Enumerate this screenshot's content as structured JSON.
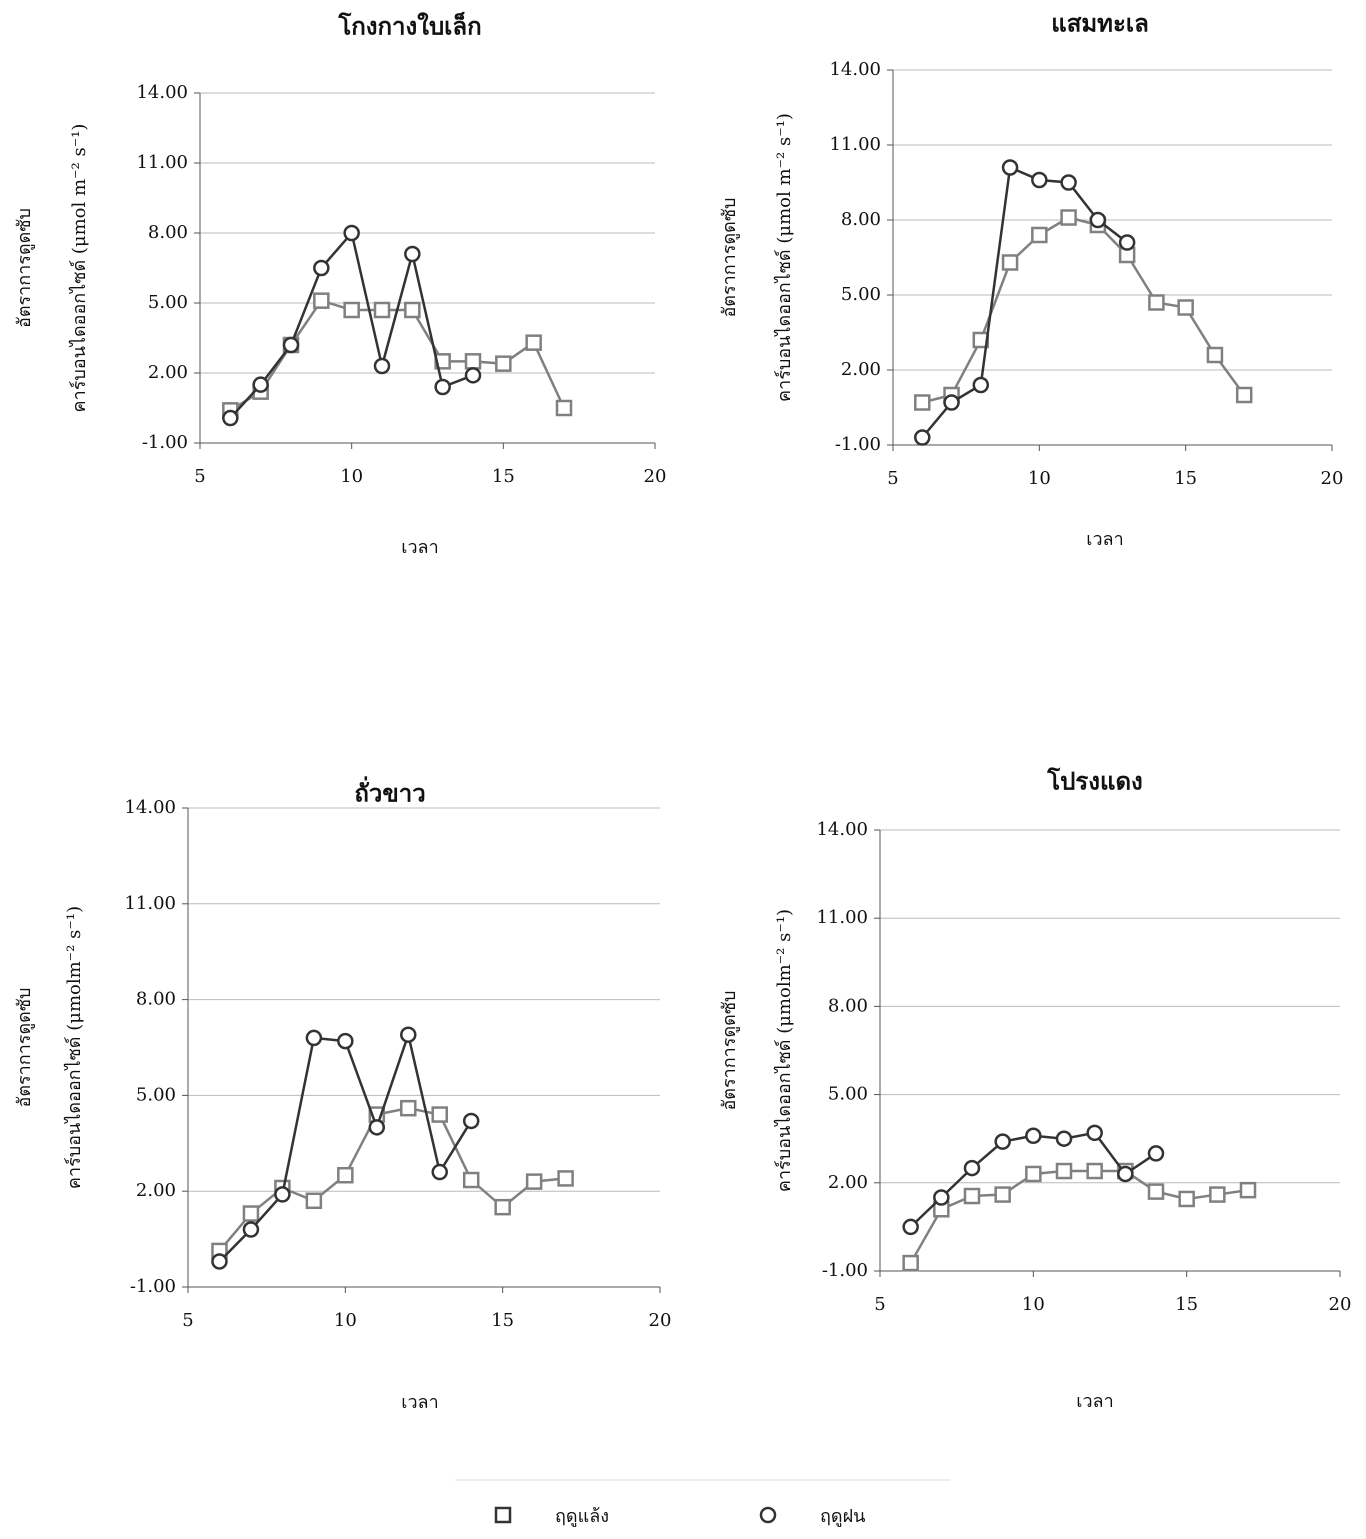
{
  "chart_data": [
    {
      "type": "line",
      "title": "โกงกางใบเล็ก",
      "xlabel": "เวลา",
      "ylabel": [
        "อัตราการดูดซับ",
        "คาร์บอนไดออกไซด์ (μmol m⁻² s⁻¹)"
      ],
      "xlim": [
        5,
        20
      ],
      "xticks": [
        5,
        10,
        15,
        20
      ],
      "ylim": [
        -1,
        14
      ],
      "yticks": [
        {
          "value": -1,
          "label": "-1.00"
        },
        {
          "value": 2,
          "label": "2.00"
        },
        {
          "value": 5,
          "label": "5.00"
        },
        {
          "value": 8,
          "label": "8.00"
        },
        {
          "value": 11,
          "label": "11.00"
        },
        {
          "value": 14,
          "label": "14.00"
        }
      ],
      "grid": true,
      "series": [
        {
          "name": "ฤดูแล้ง",
          "color": "#808080",
          "marker": "square",
          "x": [
            6,
            7,
            8,
            9,
            10,
            11,
            12,
            13,
            14,
            15,
            16,
            17
          ],
          "values": [
            0.4,
            1.2,
            3.2,
            5.1,
            4.7,
            4.7,
            4.7,
            2.5,
            2.5,
            2.4,
            3.3,
            0.5
          ]
        },
        {
          "name": "ฤดูฝน",
          "color": "#333333",
          "marker": "circle",
          "x": [
            6,
            7,
            8,
            9,
            10,
            11,
            12,
            13,
            14
          ],
          "values": [
            0.07,
            1.5,
            3.2,
            6.5,
            8.0,
            2.3,
            7.1,
            1.4,
            1.9
          ]
        }
      ]
    },
    {
      "type": "line",
      "title": "แสมทะเล",
      "xlabel": "เวลา",
      "ylabel": [
        "อัตราการดูดซับ",
        "คาร์บอนไดออกไซด์ (μmol m⁻² s⁻¹)"
      ],
      "xlim": [
        5,
        20
      ],
      "xticks": [
        5,
        10,
        15,
        20
      ],
      "ylim": [
        -1,
        14
      ],
      "yticks": [
        {
          "value": -1,
          "label": "-1.00"
        },
        {
          "value": 2,
          "label": "2.00"
        },
        {
          "value": 5,
          "label": "5.00"
        },
        {
          "value": 8,
          "label": "8.00"
        },
        {
          "value": 11,
          "label": "11.00"
        },
        {
          "value": 14,
          "label": "14.00"
        }
      ],
      "grid": true,
      "series": [
        {
          "name": "ฤดูแล้ง",
          "color": "#808080",
          "marker": "square",
          "x": [
            6,
            7,
            8,
            9,
            10,
            11,
            12,
            13,
            14,
            15,
            16,
            17
          ],
          "values": [
            0.7,
            1.0,
            3.2,
            6.3,
            7.4,
            8.1,
            7.8,
            6.6,
            4.7,
            4.5,
            2.6,
            1.0
          ]
        },
        {
          "name": "ฤดูฝน",
          "color": "#333333",
          "marker": "circle",
          "x": [
            6,
            7,
            8,
            9,
            10,
            11,
            12,
            13
          ],
          "values": [
            -0.7,
            0.7,
            1.4,
            10.1,
            9.6,
            9.5,
            8.0,
            7.1
          ]
        }
      ]
    },
    {
      "type": "line",
      "title": "ถั่วขาว",
      "xlabel": "เวลา",
      "ylabel": [
        "อัตราการดูดซับ",
        "คาร์บอนไดออกไซด์ (μmolm⁻² s⁻¹)"
      ],
      "xlim": [
        5,
        20
      ],
      "xticks": [
        5,
        10,
        15,
        20
      ],
      "ylim": [
        -1,
        14
      ],
      "yticks": [
        {
          "value": -1,
          "label": "-1.00"
        },
        {
          "value": 2,
          "label": "2.00"
        },
        {
          "value": 5,
          "label": "5.00"
        },
        {
          "value": 8,
          "label": "8.00"
        },
        {
          "value": 11,
          "label": "11.00"
        },
        {
          "value": 14,
          "label": "14.00"
        }
      ],
      "grid": true,
      "series": [
        {
          "name": "ฤดูแล้ง",
          "color": "#808080",
          "marker": "square",
          "x": [
            6,
            7,
            8,
            9,
            10,
            11,
            12,
            13,
            14,
            15,
            16,
            17
          ],
          "values": [
            0.13,
            1.3,
            2.1,
            1.7,
            2.5,
            4.4,
            4.6,
            4.4,
            2.35,
            1.5,
            2.3,
            2.4
          ]
        },
        {
          "name": "ฤดูฝน",
          "color": "#333333",
          "marker": "circle",
          "x": [
            6,
            7,
            8,
            9,
            10,
            11,
            12,
            13,
            14
          ],
          "values": [
            -0.2,
            0.8,
            1.9,
            6.8,
            6.7,
            4.0,
            6.9,
            2.6,
            4.2
          ]
        }
      ]
    },
    {
      "type": "line",
      "title": "โปรงแดง",
      "xlabel": "เวลา",
      "ylabel": [
        "อัตราการดูดซับ",
        "คาร์บอนไดออกไซด์ (μmolm⁻² s⁻¹)"
      ],
      "xlim": [
        5,
        20
      ],
      "xticks": [
        5,
        10,
        15,
        20
      ],
      "ylim": [
        -1,
        14
      ],
      "yticks": [
        {
          "value": -1,
          "label": "-1.00"
        },
        {
          "value": 2,
          "label": "2.00"
        },
        {
          "value": 5,
          "label": "5.00"
        },
        {
          "value": 8,
          "label": "8.00"
        },
        {
          "value": 11,
          "label": "11.00"
        },
        {
          "value": 14,
          "label": "14.00"
        }
      ],
      "grid": true,
      "series": [
        {
          "name": "ฤดูแล้ง",
          "color": "#808080",
          "marker": "square",
          "x": [
            6,
            7,
            8,
            9,
            10,
            11,
            12,
            13,
            14,
            15,
            16,
            17
          ],
          "values": [
            -0.73,
            1.1,
            1.55,
            1.6,
            2.3,
            2.4,
            2.4,
            2.4,
            1.7,
            1.45,
            1.6,
            1.75
          ]
        },
        {
          "name": "ฤดูฝน",
          "color": "#333333",
          "marker": "circle",
          "x": [
            6,
            7,
            8,
            9,
            10,
            11,
            12,
            13,
            14
          ],
          "values": [
            0.5,
            1.5,
            2.5,
            3.4,
            3.6,
            3.5,
            3.7,
            2.3,
            3.0
          ]
        }
      ]
    }
  ]
}
